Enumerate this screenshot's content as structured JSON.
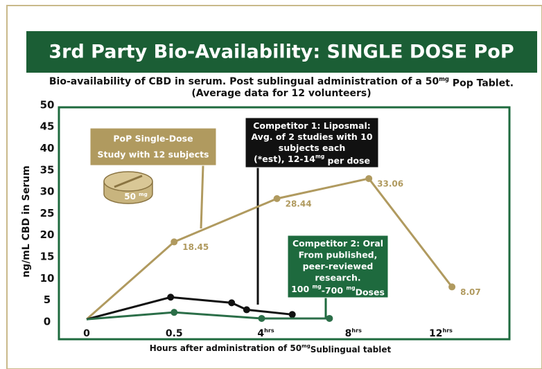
{
  "chart_data": {
    "type": "line",
    "title": "3rd Party Bio-Availability: SINGLE DOSE PoP",
    "subtitle": [
      "Bio-availability of CBD in serum. Post sublingual administration of a 50",
      "mg",
      " Pop Tablet."
    ],
    "subtitle2": "(Average data for 12 volunteers)",
    "y_label": "ng/mL CBD in Serum",
    "x_label": [
      "Hours after administration of 50",
      "mg",
      "Sublingual tablet"
    ],
    "ylim": [
      -4,
      49.5
    ],
    "yticks": [
      0,
      5,
      10,
      15,
      20,
      25,
      30,
      35,
      40,
      45,
      50
    ],
    "xticks": [
      0,
      0.5,
      {
        "value": 4,
        "label": "4",
        "unit": "hrs"
      },
      {
        "value": 8,
        "label": "8",
        "unit": "hrs"
      },
      {
        "value": 12,
        "label": "12",
        "unit": "hrs"
      }
    ],
    "series": [
      {
        "color": "#b09a5f",
        "x": [
          0,
          0.5,
          4.7,
          8.9,
          12.7
        ],
        "values": [
          0.6,
          18.45,
          28.44,
          33.06,
          8.07
        ],
        "value_labels": [
          null,
          "18.45",
          "28.44",
          "33.06",
          "8.07"
        ]
      },
      {
        "color": "#111111",
        "x": [
          0,
          0.48,
          2.8,
          3.4,
          5.4
        ],
        "values": [
          0.6,
          5.7,
          4.4,
          2.8,
          1.7
        ]
      },
      {
        "color": "#2b6e48",
        "x": [
          0,
          0.5,
          4,
          7.1
        ],
        "values": [
          0.6,
          2.2,
          0.8,
          0.8
        ]
      }
    ],
    "annotations": [
      {
        "color": "#b09a5f",
        "lines": [
          [
            "PoP Single-Dose"
          ],
          [
            "Study with 12 subjects"
          ]
        ]
      },
      {
        "color": "#111111",
        "lines": [
          [
            "Competitor 1: Liposmal:"
          ],
          [
            "Avg. of 2 studies with 10"
          ],
          [
            "subjects each"
          ],
          [
            "(*est), 12-14",
            "mg",
            " per dose"
          ]
        ]
      },
      {
        "color": "#1e6a3e",
        "lines": [
          [
            "Competitor 2: Oral"
          ],
          [
            "From published,"
          ],
          [
            "peer-reviewed"
          ],
          [
            "research."
          ],
          [
            "100 ",
            "mg",
            "-700 ",
            "mg",
            "Doses"
          ]
        ]
      }
    ],
    "pill_label": [
      "50 ",
      "mg"
    ]
  }
}
